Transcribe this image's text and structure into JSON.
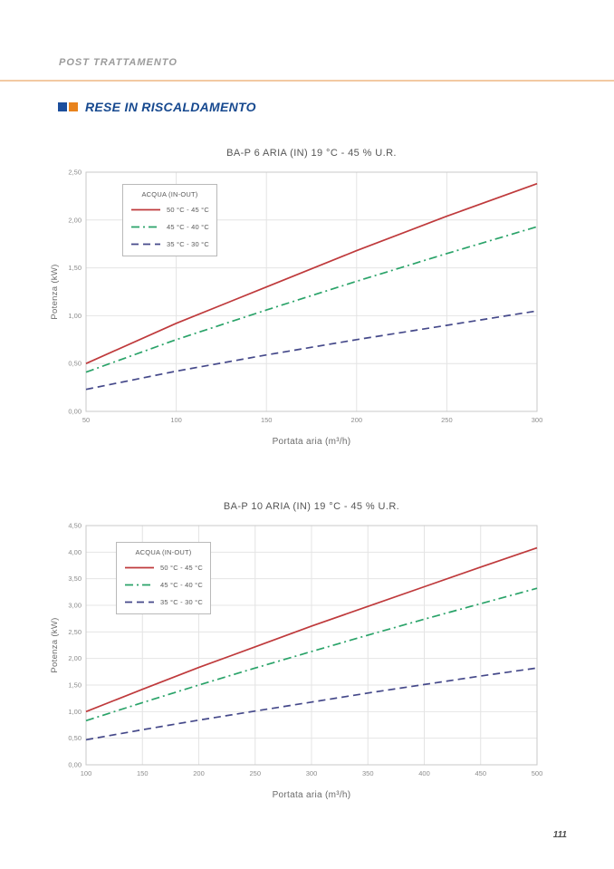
{
  "header": {
    "breadcrumb": "POST TRATTAMENTO",
    "section_title": "RESE IN RISCALDAMENTO"
  },
  "footer": {
    "page_number": "111"
  },
  "colors": {
    "accent_blue": "#1c4e9c",
    "accent_orange": "#e8831d",
    "rule_orange": "#f2c9a3",
    "series_red": "#bf3a3c",
    "series_green": "#2aa369",
    "series_navy": "#45498a",
    "grid": "#e4e4e4",
    "plot_border": "#c9c9c9"
  },
  "chart_data": [
    {
      "type": "line",
      "title": "BA-P 6 ARIA (IN) 19 °C - 45 % U.R.",
      "xlabel": "Portata aria (m³/h)",
      "ylabel": "Potenza (kW)",
      "legend_title": "ACQUA (IN-OUT)",
      "legend_position": "upper-left",
      "grid": true,
      "xlim": [
        50,
        300
      ],
      "ylim": [
        0,
        2.5
      ],
      "x_ticks": [
        50,
        100,
        150,
        200,
        250,
        300
      ],
      "y_tick_labels": [
        "0,00",
        "0,50",
        "1,00",
        "1,50",
        "2,00",
        "2,50"
      ],
      "x": [
        50,
        100,
        150,
        200,
        250,
        300
      ],
      "series": [
        {
          "name": "50 °C - 45 °C",
          "color": "#bf3a3c",
          "dash": "solid",
          "values": [
            0.5,
            0.92,
            1.3,
            1.68,
            2.04,
            2.38
          ]
        },
        {
          "name": "45 °C - 40 °C",
          "color": "#2aa369",
          "dash": "dashdot",
          "values": [
            0.41,
            0.75,
            1.06,
            1.36,
            1.65,
            1.93
          ]
        },
        {
          "name": "35 °C - 30 °C",
          "color": "#45498a",
          "dash": "dashed",
          "values": [
            0.23,
            0.42,
            0.59,
            0.75,
            0.9,
            1.05
          ]
        }
      ]
    },
    {
      "type": "line",
      "title": "BA-P 10 ARIA (IN) 19 °C - 45 % U.R.",
      "xlabel": "Portata aria (m³/h)",
      "ylabel": "Potenza (kW)",
      "legend_title": "ACQUA (IN-OUT)",
      "legend_position": "upper-left",
      "grid": true,
      "xlim": [
        100,
        500
      ],
      "ylim": [
        0,
        4.5
      ],
      "x_ticks": [
        100,
        150,
        200,
        250,
        300,
        350,
        400,
        450,
        500
      ],
      "y_tick_labels": [
        "0,00",
        "0,50",
        "1,00",
        "1,50",
        "2,00",
        "2,50",
        "3,00",
        "3,50",
        "4,00",
        "4,50"
      ],
      "x": [
        100,
        150,
        200,
        250,
        300,
        350,
        400,
        450,
        500
      ],
      "series": [
        {
          "name": "50 °C - 45 °C",
          "color": "#bf3a3c",
          "dash": "solid",
          "values": [
            1.0,
            1.42,
            1.83,
            2.22,
            2.61,
            2.98,
            3.35,
            3.72,
            4.08
          ]
        },
        {
          "name": "45 °C - 40 °C",
          "color": "#2aa369",
          "dash": "dashdot",
          "values": [
            0.83,
            1.17,
            1.5,
            1.82,
            2.13,
            2.44,
            2.74,
            3.03,
            3.32
          ]
        },
        {
          "name": "35 °C - 30 °C",
          "color": "#45498a",
          "dash": "dashed",
          "values": [
            0.47,
            0.66,
            0.84,
            1.01,
            1.18,
            1.35,
            1.51,
            1.67,
            1.82
          ]
        }
      ]
    }
  ]
}
